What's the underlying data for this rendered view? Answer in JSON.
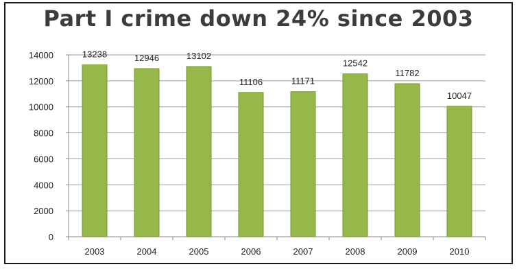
{
  "chart_data": {
    "type": "bar",
    "title": "Part I crime down 24% since 2003",
    "categories": [
      "2003",
      "2004",
      "2005",
      "2006",
      "2007",
      "2008",
      "2009",
      "2010"
    ],
    "values": [
      13238,
      12946,
      13102,
      11106,
      11171,
      12542,
      11782,
      10047
    ],
    "data_labels": [
      "13238",
      "12946",
      "13102",
      "11106",
      "11171",
      "12542",
      "11782",
      "10047"
    ],
    "yticks": [
      "0",
      "2000",
      "4000",
      "6000",
      "8000",
      "10000",
      "12000",
      "14000"
    ],
    "ylim": [
      0,
      14000
    ],
    "grid": true,
    "bar_color": "#96b84a",
    "bar_edge_color": "#7a9a36"
  }
}
